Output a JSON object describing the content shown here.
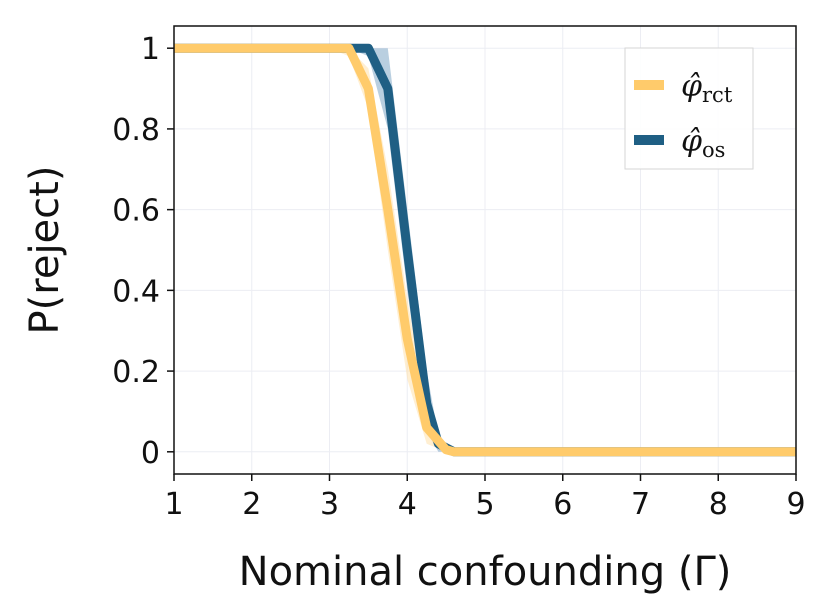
{
  "chart_data": {
    "type": "line",
    "title": "",
    "xlabel": "Nominal confounding (Γ)",
    "ylabel": "P(reject)",
    "xlim": [
      1,
      9
    ],
    "ylim": [
      -0.055,
      1.055
    ],
    "xticks": [
      1,
      2,
      3,
      4,
      5,
      6,
      7,
      8,
      9
    ],
    "yticks": [
      0,
      0.2,
      0.4,
      0.6,
      0.8,
      1
    ],
    "ytick_labels": [
      "0",
      "0.2",
      "0.4",
      "0.6",
      "0.8",
      "1"
    ],
    "grid": true,
    "legend_position": "top-right",
    "series": [
      {
        "name": "φ̂rct",
        "legend_main": "φ̂",
        "legend_sub": "rct",
        "color": "#FFCB6B",
        "band_color": "#FFE0A6",
        "x": [
          1,
          3.0,
          3.25,
          3.5,
          3.75,
          4.0,
          4.25,
          4.5,
          4.6,
          9
        ],
        "y": [
          1,
          1,
          1,
          0.9,
          0.6,
          0.28,
          0.06,
          0.005,
          0,
          0
        ],
        "lower": [
          1,
          1,
          0.98,
          0.85,
          0.5,
          0.18,
          0.02,
          0,
          0,
          0
        ],
        "upper": [
          1,
          1,
          1,
          0.95,
          0.7,
          0.38,
          0.1,
          0.01,
          0,
          0
        ]
      },
      {
        "name": "φ̂os",
        "legend_main": "φ̂",
        "legend_sub": "os",
        "color": "#1F5F84",
        "band_color": "#7FA8C6",
        "x": [
          1,
          3.25,
          3.5,
          3.75,
          4.0,
          4.25,
          4.4,
          4.6,
          9
        ],
        "y": [
          1,
          1,
          1,
          0.9,
          0.5,
          0.12,
          0.02,
          0,
          0
        ],
        "lower": [
          1,
          1,
          0.98,
          0.8,
          0.4,
          0.05,
          0,
          0,
          0
        ],
        "upper": [
          1,
          1,
          1,
          1,
          0.6,
          0.2,
          0.04,
          0,
          0
        ]
      }
    ]
  }
}
